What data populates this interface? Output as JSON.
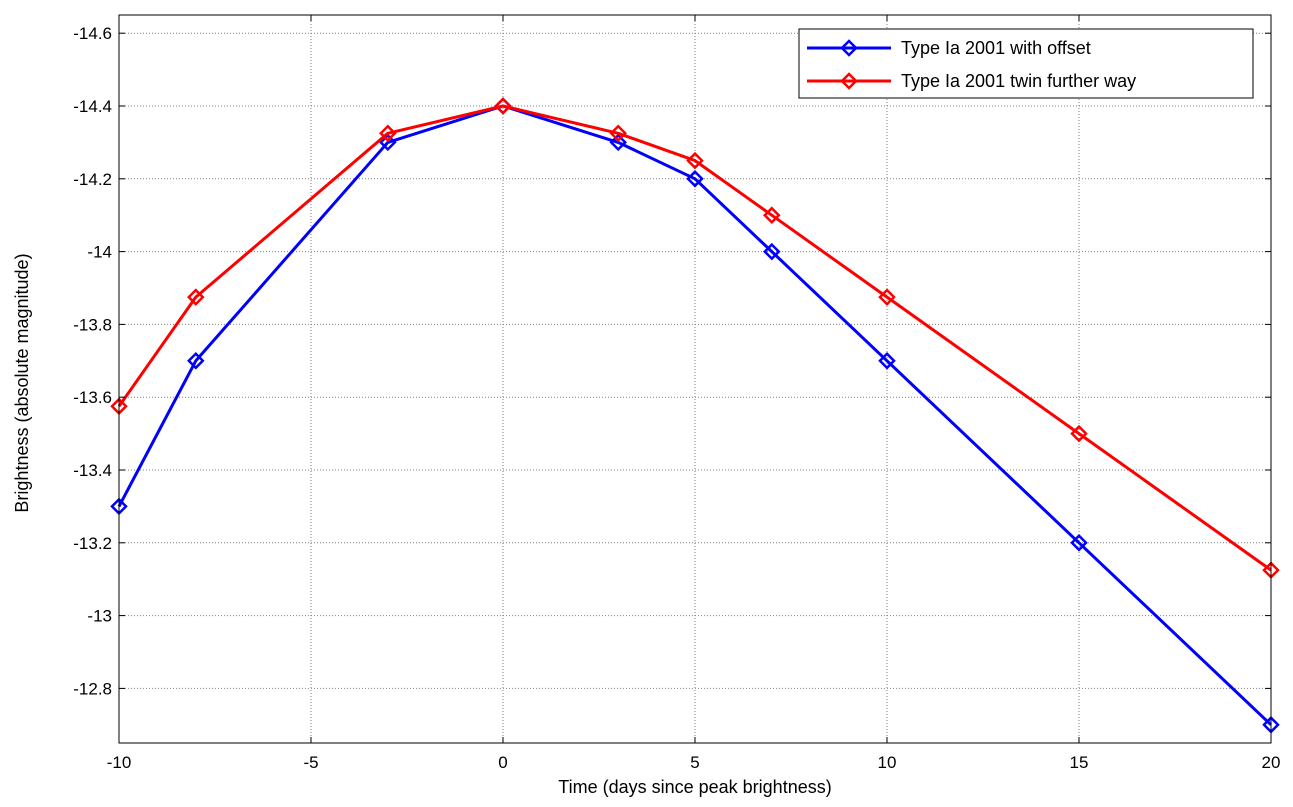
{
  "chart_data": {
    "type": "line",
    "title": "",
    "xlabel": "Time (days since peak brightness)",
    "ylabel": "Brightness (absolute magnitude)",
    "xlim": [
      -10,
      20
    ],
    "ylim": [
      -12.65,
      -14.65
    ],
    "y_axis_reversed": true,
    "grid": true,
    "legend_position": "top-right",
    "x_ticks": [
      -10,
      -5,
      0,
      5,
      10,
      15,
      20
    ],
    "x_tick_labels": [
      "-10",
      "-5",
      "0",
      "5",
      "10",
      "15",
      "20"
    ],
    "y_ticks": [
      -12.8,
      -13,
      -13.2,
      -13.4,
      -13.6,
      -13.8,
      -14,
      -14.2,
      -14.4,
      -14.6
    ],
    "y_tick_labels": [
      "-12.8",
      "-13",
      "-13.2",
      "-13.4",
      "-13.6",
      "-13.8",
      "-14",
      "-14.2",
      "-14.4",
      "-14.6"
    ],
    "series": [
      {
        "name": "Type Ia 2001 with offset",
        "color": "#0000ff",
        "marker": "diamond",
        "x": [
          -10,
          -8,
          -3,
          0,
          3,
          5,
          7,
          10,
          15,
          20
        ],
        "y": [
          -13.3,
          -13.7,
          -14.3,
          -14.4,
          -14.3,
          -14.2,
          -14.0,
          -13.7,
          -13.2,
          -12.7
        ]
      },
      {
        "name": "Type Ia 2001 twin further way",
        "color": "#ff0000",
        "marker": "diamond",
        "x": [
          -10,
          -8,
          -3,
          0,
          3,
          5,
          7,
          10,
          15,
          20
        ],
        "y": [
          -13.575,
          -13.875,
          -14.325,
          -14.4,
          -14.325,
          -14.25,
          -14.1,
          -13.875,
          -13.5,
          -13.125
        ]
      }
    ]
  }
}
